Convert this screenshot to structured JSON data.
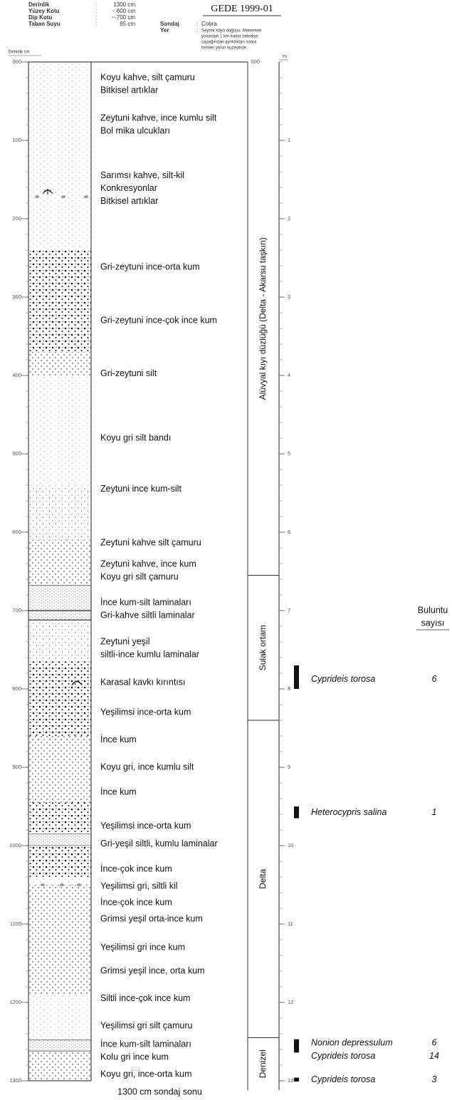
{
  "header": {
    "title": "GEDE 1999-01",
    "separator": ":",
    "fields": [
      {
        "label": "Derinlik",
        "value": "1300 cm"
      },
      {
        "label": "Yüzey Kotu",
        "value": "~ 600 cm"
      },
      {
        "label": "Dip Kotu",
        "value": "~-700 cm"
      },
      {
        "label": "Taban Suyu",
        "value": "65 cm"
      }
    ],
    "sondaj": {
      "label": "Sondaj",
      "value": "Cobra"
    },
    "yer": {
      "label": "Yer",
      "lines": [
        "Seyrek köyü doğusu. Menemen",
        "yolundan 1 km kadar belediye",
        "sapağından ayrıldıktan sonra",
        "hemen yolun kuzeyinde."
      ]
    }
  },
  "depth_axis": {
    "label": "Derinlik cm",
    "ticks": [
      "000",
      "100",
      "200",
      "300",
      "400",
      "500",
      "600",
      "700",
      "800",
      "900",
      "1000",
      "1100",
      "1200",
      "1300"
    ]
  },
  "descriptions": [
    [
      "Koyu kahve, silt çamuru",
      "Bitkisel artıklar"
    ],
    [
      "Zeytuni kahve, ince kumlu silt",
      "Bol mika ulcukları"
    ],
    [
      "Sarımsı kahve, silt-kil",
      "Konkresyonlar",
      "Bitkisel artıklar"
    ],
    [
      "Gri-zeytuni ince-orta kum"
    ],
    [
      "Gri-zeytuni ince-çok ince kum"
    ],
    [
      "Gri-zeytuni silt"
    ],
    [
      "Koyu gri silt bandı"
    ],
    [
      "Zeytuni ince kum-silt"
    ],
    [
      "Zeytuni kahve silt çamuru"
    ],
    [
      "Zeytuni kahve, ince kum",
      "Koyu gri silt çamuru"
    ],
    [
      "İnce kum-silt laminaları",
      "Gri-kahve siltli laminalar"
    ],
    [
      "Zeytuni yeşil",
      "siltli-ince kumlu laminalar"
    ],
    [
      "Karasal kavkı kırıntısı"
    ],
    [
      "Yeşilimsi ince-orta kum"
    ],
    [
      "İnce kum"
    ],
    [
      "Koyu gri, ince kumlu silt"
    ],
    [
      "İnce kum"
    ],
    [
      "Yeşilimsi ince-orta kum"
    ],
    [
      "Gri-yeşil siltli, kumlu laminalar"
    ],
    [
      "İnce-çok ince kum"
    ],
    [
      "Yeşilimsi gri, siltli kil"
    ],
    [
      "İnce-çok ince kum"
    ],
    [
      "Grimsi yeşil orta-ince kum"
    ],
    [
      "Yeşilimsi gri ince kum"
    ],
    [
      "Grimsi yeşil ince, orta kum"
    ],
    [
      "Siltli ince-çok ince kum"
    ],
    [
      "Yeşilimsi gri silt çamuru"
    ],
    [
      "İnce kum-silt laminaları",
      "Kolu gri ince kum"
    ],
    [
      "Koyu gri, ince-orta kum"
    ]
  ],
  "end_note": "1300 cm sondaj sonu",
  "environments": [
    "Alüvyal kıyı düzlüğü (Delta - Akarsu taşkın)",
    "Sulak ortam",
    "Delta",
    "Denizel"
  ],
  "meter_axis": {
    "unit": "m",
    "zero": "000",
    "ticks": [
      1,
      2,
      3,
      4,
      5,
      6,
      7,
      8,
      9,
      10,
      11,
      12,
      13
    ]
  },
  "findings": {
    "header": [
      "Buluntu",
      "sayısı"
    ],
    "items": [
      {
        "name": "Cyprideis torosa",
        "count": 6
      },
      {
        "name": "Heterocypris salina",
        "count": 1
      },
      {
        "name": "Nonion depressulum",
        "count": 6
      },
      {
        "name": "Cyprideis torosa",
        "count": 14
      },
      {
        "name": "Cyprideis torosa",
        "count": 3
      }
    ]
  }
}
